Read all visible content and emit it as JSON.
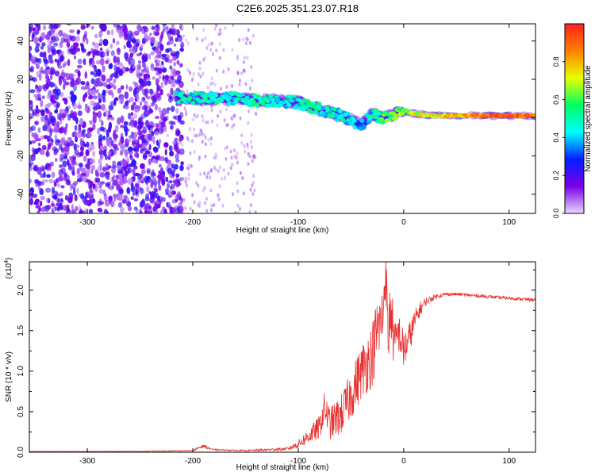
{
  "figure": {
    "title": "C2E6.2025.351.23.07.R18"
  },
  "chart_data": [
    {
      "type": "heatmap",
      "name": "spectrogram",
      "xlabel": "Height of straight line (km)",
      "ylabel": "Frequency (Hz)",
      "xlim": [
        -355,
        125
      ],
      "ylim": [
        -50,
        49
      ],
      "xticks": [
        -300,
        -200,
        -100,
        0,
        100
      ],
      "yticks": [
        -40,
        -20,
        0,
        20,
        40
      ],
      "colorbar": {
        "label": "Normalized spectral amplitude",
        "range": [
          0,
          1
        ],
        "ticks": [
          0.0,
          0.2,
          0.4,
          0.6,
          0.8
        ],
        "tick_labels": [
          "0.0",
          "0.2",
          "0.4",
          "0.6",
          "0.8"
        ],
        "colormap": [
          "#e8d8ff",
          "#7a00e8",
          "#0020ff",
          "#00ffff",
          "#00ff60",
          "#e8ff00",
          "#ff8000",
          "#ff2020"
        ]
      },
      "band": [
        {
          "x": -215,
          "f": 11,
          "amp": 0.5
        },
        {
          "x": -200,
          "f": 10,
          "amp": 0.45
        },
        {
          "x": -180,
          "f": 10,
          "amp": 0.5
        },
        {
          "x": -160,
          "f": 10,
          "amp": 0.45
        },
        {
          "x": -140,
          "f": 9,
          "amp": 0.5
        },
        {
          "x": -120,
          "f": 9,
          "amp": 0.45
        },
        {
          "x": -100,
          "f": 8,
          "amp": 0.45
        },
        {
          "x": -85,
          "f": 5,
          "amp": 0.5
        },
        {
          "x": -70,
          "f": 3,
          "amp": 0.45
        },
        {
          "x": -55,
          "f": 0,
          "amp": 0.45
        },
        {
          "x": -40,
          "f": -4,
          "amp": 0.35
        },
        {
          "x": -30,
          "f": 2,
          "amp": 0.45
        },
        {
          "x": -20,
          "f": 0,
          "amp": 0.6
        },
        {
          "x": -10,
          "f": 1,
          "amp": 0.6
        },
        {
          "x": 0,
          "f": 4,
          "amp": 0.65
        },
        {
          "x": 10,
          "f": 2,
          "amp": 0.7
        },
        {
          "x": 30,
          "f": 1,
          "amp": 0.75
        },
        {
          "x": 60,
          "f": 1,
          "amp": 0.8
        },
        {
          "x": 90,
          "f": 1,
          "amp": 0.95
        },
        {
          "x": 125,
          "f": 1,
          "amp": 0.9
        }
      ]
    },
    {
      "type": "line",
      "name": "snr",
      "xlabel": "Height of straight line (km)",
      "ylabel": "SNR (10 * v/v)",
      "scale_label": "(x10",
      "scale_exp": "4",
      "scale_close": ")",
      "color": "#e83030",
      "xlim": [
        -355,
        125
      ],
      "ylim": [
        0,
        2.35
      ],
      "xticks": [
        -300,
        -200,
        -100,
        0,
        100
      ],
      "yticks": [
        0.0,
        0.5,
        1.0,
        1.5,
        2.0
      ],
      "ytick_labels": [
        "0.0",
        "0.5",
        "1.0",
        "1.5",
        "2.0"
      ],
      "series": [
        {
          "name": "SNR",
          "x": [
            -355,
            -300,
            -250,
            -200,
            -190,
            -185,
            -180,
            -150,
            -110,
            -100,
            -90,
            -80,
            -75,
            -70,
            -60,
            -50,
            -40,
            -30,
            -25,
            -20,
            -17,
            -15,
            -12,
            -10,
            -8,
            -5,
            0,
            5,
            10,
            15,
            20,
            30,
            40,
            50,
            60,
            80,
            100,
            125
          ],
          "y": [
            0.01,
            0.01,
            0.01,
            0.02,
            0.08,
            0.05,
            0.03,
            0.02,
            0.04,
            0.1,
            0.2,
            0.3,
            0.55,
            0.35,
            0.45,
            0.7,
            1.0,
            1.2,
            1.5,
            1.65,
            2.3,
            1.4,
            1.8,
            1.45,
            1.3,
            1.5,
            1.25,
            1.4,
            1.6,
            1.75,
            1.85,
            1.92,
            1.95,
            1.95,
            1.94,
            1.92,
            1.9,
            1.88
          ],
          "noise": [
            0.002,
            0.003,
            0.004,
            0.006,
            0.02,
            0.015,
            0.01,
            0.008,
            0.02,
            0.05,
            0.1,
            0.15,
            0.2,
            0.2,
            0.25,
            0.3,
            0.35,
            0.4,
            0.45,
            0.4,
            0.3,
            0.45,
            0.4,
            0.35,
            0.3,
            0.25,
            0.25,
            0.2,
            0.15,
            0.1,
            0.05,
            0.03,
            0.02,
            0.02,
            0.02,
            0.02,
            0.02,
            0.02
          ]
        }
      ]
    }
  ]
}
